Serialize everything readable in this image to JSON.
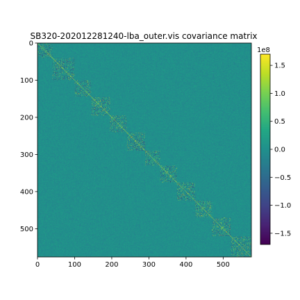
{
  "chart_data": {
    "type": "heatmap",
    "title": "SB320-202012281240-lba_outer.vis covariance matrix",
    "matrix_size": 576,
    "x_ticks": [
      "0",
      "100",
      "200",
      "300",
      "400",
      "500"
    ],
    "x_tick_values": [
      0,
      100,
      200,
      300,
      400,
      500
    ],
    "y_ticks": [
      "0",
      "100",
      "200",
      "300",
      "400",
      "500"
    ],
    "y_tick_values": [
      0,
      100,
      200,
      300,
      400,
      500
    ],
    "xlim": [
      0,
      576
    ],
    "ylim": [
      576,
      0
    ],
    "colorbar": {
      "colormap": "viridis",
      "offset_label": "1e8",
      "vmin": -1.7,
      "vmax": 1.7,
      "ticks": [
        "1.5",
        "1.0",
        "0.5",
        "0.0",
        "−0.5",
        "−1.0",
        "−1.5"
      ],
      "tick_values": [
        1.5,
        1.0,
        0.5,
        0.0,
        -0.5,
        -1.0,
        -1.5
      ]
    },
    "diagonal_blocks": [
      {
        "start": 0,
        "end": 40
      },
      {
        "start": 40,
        "end": 100
      },
      {
        "start": 100,
        "end": 145
      },
      {
        "start": 145,
        "end": 195
      },
      {
        "start": 195,
        "end": 240
      },
      {
        "start": 240,
        "end": 290
      },
      {
        "start": 290,
        "end": 330
      },
      {
        "start": 330,
        "end": 375
      },
      {
        "start": 375,
        "end": 425
      },
      {
        "start": 425,
        "end": 470
      },
      {
        "start": 470,
        "end": 520
      },
      {
        "start": 520,
        "end": 576
      }
    ],
    "grid": false
  }
}
